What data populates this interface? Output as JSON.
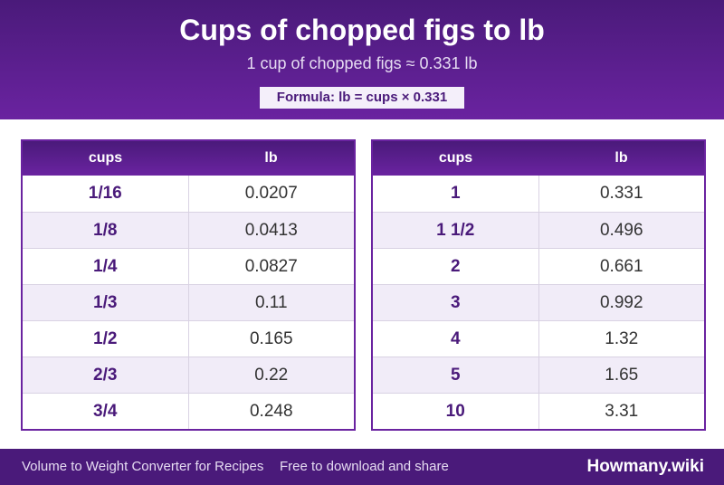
{
  "header": {
    "title": "Cups of chopped figs to lb",
    "subtitle": "1 cup of chopped figs ≈ 0.331 lb",
    "formula": "Formula: lb = cups × 0.331"
  },
  "table_left": {
    "col1": "cups",
    "col2": "lb",
    "rows": [
      {
        "cups": "1/16",
        "lb": "0.0207"
      },
      {
        "cups": "1/8",
        "lb": "0.0413"
      },
      {
        "cups": "1/4",
        "lb": "0.0827"
      },
      {
        "cups": "1/3",
        "lb": "0.11"
      },
      {
        "cups": "1/2",
        "lb": "0.165"
      },
      {
        "cups": "2/3",
        "lb": "0.22"
      },
      {
        "cups": "3/4",
        "lb": "0.248"
      }
    ]
  },
  "table_right": {
    "col1": "cups",
    "col2": "lb",
    "rows": [
      {
        "cups": "1",
        "lb": "0.331"
      },
      {
        "cups": "1 1/2",
        "lb": "0.496"
      },
      {
        "cups": "2",
        "lb": "0.661"
      },
      {
        "cups": "3",
        "lb": "0.992"
      },
      {
        "cups": "4",
        "lb": "1.32"
      },
      {
        "cups": "5",
        "lb": "1.65"
      },
      {
        "cups": "10",
        "lb": "3.31"
      }
    ]
  },
  "footer": {
    "left": "Volume to Weight Converter for Recipes",
    "middle": "Free to download and share",
    "brand": "Howmany.wiki"
  }
}
